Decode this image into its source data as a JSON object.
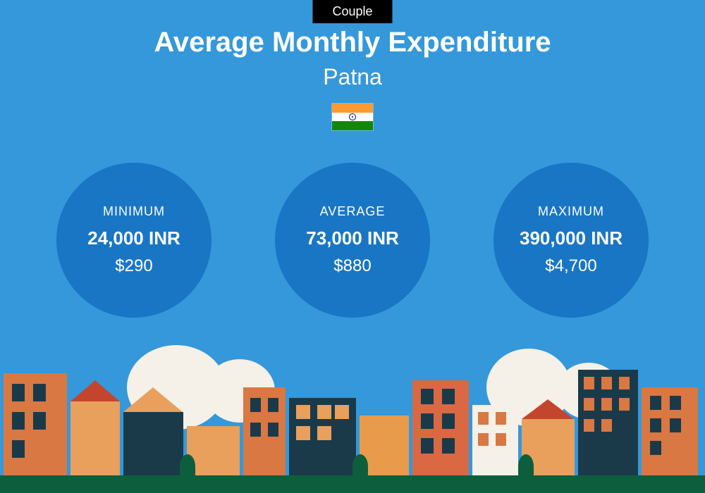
{
  "badge": "Couple",
  "title": "Average Monthly Expenditure",
  "city": "Patna",
  "flag": {
    "country": "India",
    "colors": {
      "saffron": "#ff9933",
      "white": "#ffffff",
      "green": "#138808",
      "chakra": "#000080"
    }
  },
  "stats": {
    "minimum": {
      "label": "MINIMUM",
      "value_inr": "24,000 INR",
      "value_usd": "$290"
    },
    "average": {
      "label": "AVERAGE",
      "value_inr": "73,000 INR",
      "value_usd": "$880"
    },
    "maximum": {
      "label": "MAXIMUM",
      "value_inr": "390,000 INR",
      "value_usd": "$4,700"
    }
  },
  "styling": {
    "background_color": "#3498db",
    "circle_color": "#1976c5",
    "badge_bg": "#000000",
    "badge_text": "#ffffff",
    "text_color": "#ffffff",
    "title_fontsize": 40,
    "city_fontsize": 32,
    "circle_label_fontsize": 18,
    "circle_value_fontsize": 26,
    "circle_usd_fontsize": 24,
    "circle_diameter": 220,
    "circle_gap": 90,
    "flag_width": 60,
    "flag_height": 40
  },
  "cityscape": {
    "ground_color": "#0d5e3d",
    "cloud_color": "#f5f0e8",
    "building_colors": [
      "#d97843",
      "#e8a05c",
      "#1a3a4a",
      "#c4452e",
      "#e89b4a",
      "#f5f0e8",
      "#d96843"
    ],
    "tree_color": "#0d5e3d"
  }
}
